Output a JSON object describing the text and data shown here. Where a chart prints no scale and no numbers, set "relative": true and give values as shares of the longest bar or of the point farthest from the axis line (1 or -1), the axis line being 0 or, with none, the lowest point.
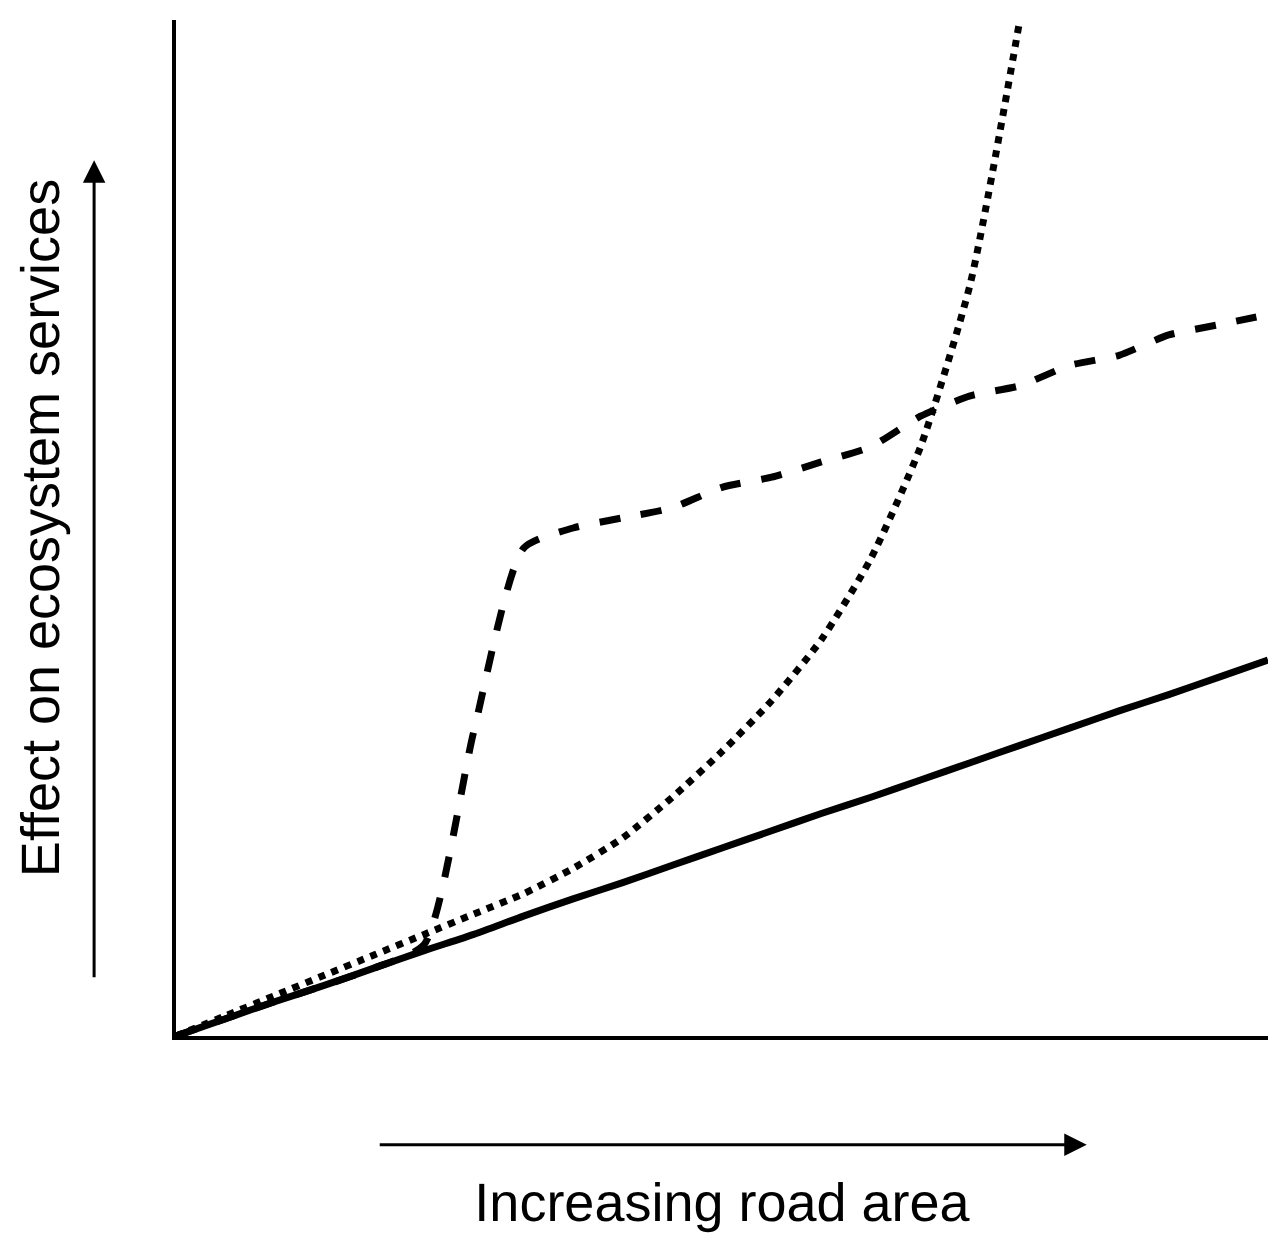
{
  "chart_data": {
    "type": "line",
    "relative": true,
    "xlabel": "Increasing road area",
    "ylabel": "Effect on ecosystem services",
    "categories": [
      null,
      null,
      null,
      null,
      null,
      null,
      null,
      null,
      null,
      null,
      null,
      null,
      null,
      null,
      null,
      null,
      null,
      null,
      null,
      null,
      null,
      null,
      null
    ],
    "series": [
      {
        "color": "#000000",
        "line_style": "dotted",
        "values": [
          0,
          0.02,
          0.04,
          0.06,
          0.08,
          0.1,
          0.12,
          0.14,
          0.165,
          0.195,
          0.235,
          0.28,
          0.33,
          0.39,
          0.47,
          0.58,
          0.74,
          1.0,
          null,
          null,
          null,
          null,
          null
        ]
      },
      {
        "color": "#000000",
        "line_style": "dashed",
        "values": [
          0,
          0.017,
          0.034,
          0.05,
          0.067,
          0.09,
          0.3,
          0.48,
          0.5,
          0.51,
          0.52,
          0.54,
          0.55,
          0.565,
          0.58,
          0.61,
          0.63,
          0.64,
          0.66,
          0.67,
          0.69,
          0.7,
          0.71
        ]
      },
      {
        "color": "#000000",
        "line_style": "solid",
        "values": [
          0,
          0.017,
          0.034,
          0.05,
          0.067,
          0.084,
          0.1,
          0.118,
          0.135,
          0.151,
          0.168,
          0.185,
          0.202,
          0.219,
          0.235,
          0.252,
          0.269,
          0.286,
          0.303,
          0.32,
          0.336,
          0.353,
          0.37
        ]
      }
    ],
    "marker": "none"
  }
}
